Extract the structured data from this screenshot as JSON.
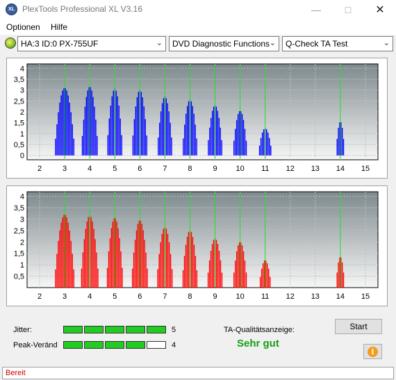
{
  "window": {
    "title": "PlexTools Professional XL V3.16",
    "icon_label": "XL"
  },
  "menu": [
    "Optionen",
    "Hilfe"
  ],
  "toolbar": {
    "drive": "HA:3 ID:0  PX-755UF",
    "function": "DVD Diagnostic Functions",
    "test": "Q-Check TA Test"
  },
  "chart_data": [
    {
      "type": "bar",
      "name": "top",
      "color": "#0000ff",
      "x_ticks": [
        "2",
        "3",
        "4",
        "5",
        "6",
        "7",
        "8",
        "9",
        "10",
        "11",
        "12",
        "13",
        "14",
        "15"
      ],
      "y_ticks": [
        "0",
        "0,5",
        "1",
        "1,5",
        "2",
        "2,5",
        "3",
        "3,5",
        "4"
      ],
      "xlim": [
        1.5,
        15.5
      ],
      "ylim": [
        -0.2,
        4.2
      ],
      "peaks": [
        {
          "x": 3,
          "height": 3.1,
          "halfwidth": 0.42
        },
        {
          "x": 4,
          "height": 3.15,
          "halfwidth": 0.35
        },
        {
          "x": 5,
          "height": 3.05,
          "halfwidth": 0.33
        },
        {
          "x": 6,
          "height": 3.0,
          "halfwidth": 0.33
        },
        {
          "x": 7,
          "height": 2.7,
          "halfwidth": 0.32
        },
        {
          "x": 8,
          "height": 2.55,
          "halfwidth": 0.32
        },
        {
          "x": 9,
          "height": 2.3,
          "halfwidth": 0.32
        },
        {
          "x": 10,
          "height": 2.05,
          "halfwidth": 0.3
        },
        {
          "x": 11,
          "height": 1.25,
          "halfwidth": 0.28
        },
        {
          "x": 14,
          "height": 1.55,
          "halfwidth": 0.18
        }
      ],
      "markers": [
        3,
        4,
        5,
        6,
        7,
        8,
        9,
        10,
        11,
        14
      ]
    },
    {
      "type": "bar",
      "name": "bottom",
      "color": "#ff0000",
      "x_ticks": [
        "2",
        "3",
        "4",
        "5",
        "6",
        "7",
        "8",
        "9",
        "10",
        "11",
        "12",
        "13",
        "14",
        "15"
      ],
      "y_ticks": [
        "0,5",
        "1",
        "1,5",
        "2",
        "2,5",
        "3",
        "3,5",
        "4"
      ],
      "xlim": [
        1.5,
        15.5
      ],
      "ylim": [
        0,
        4.2
      ],
      "peaks": [
        {
          "x": 3,
          "height": 3.2,
          "halfwidth": 0.42
        },
        {
          "x": 4,
          "height": 3.15,
          "halfwidth": 0.38
        },
        {
          "x": 5,
          "height": 3.05,
          "halfwidth": 0.35
        },
        {
          "x": 6,
          "height": 2.95,
          "halfwidth": 0.35
        },
        {
          "x": 7,
          "height": 2.65,
          "halfwidth": 0.34
        },
        {
          "x": 8,
          "height": 2.5,
          "halfwidth": 0.33
        },
        {
          "x": 9,
          "height": 2.15,
          "halfwidth": 0.33
        },
        {
          "x": 10,
          "height": 2.0,
          "halfwidth": 0.3
        },
        {
          "x": 11,
          "height": 1.2,
          "halfwidth": 0.25
        },
        {
          "x": 14,
          "height": 1.35,
          "halfwidth": 0.18
        }
      ],
      "markers": [
        3,
        4,
        5,
        6,
        7,
        8,
        9,
        10,
        11,
        14
      ]
    }
  ],
  "results": {
    "jitter_label": "Jitter:",
    "jitter_value": "5",
    "jitter_level": 5,
    "peak_label": "Peak-Veränd",
    "peak_value": "4",
    "peak_level": 4,
    "quality_label": "TA-Qualitätsanzeige:",
    "quality_value": "Sehr gut",
    "start_button": "Start",
    "info_button": "i"
  },
  "status": "Bereit"
}
